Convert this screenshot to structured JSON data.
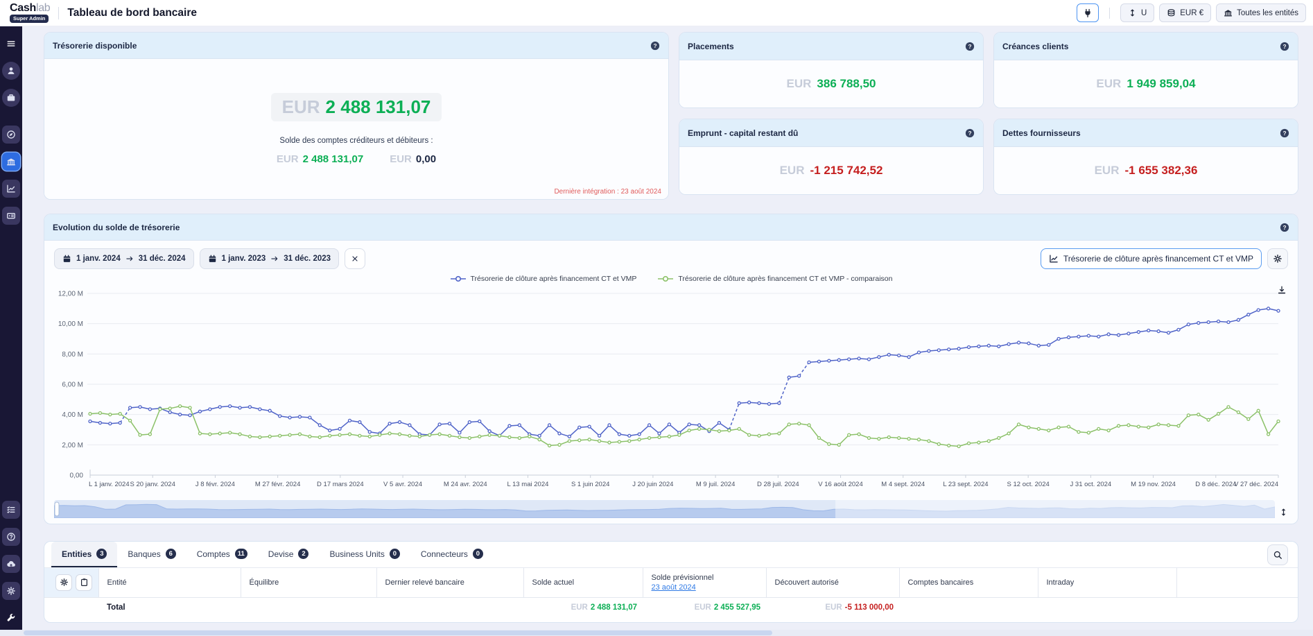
{
  "app": {
    "brand_bold": "Cash",
    "brand_light": "lab",
    "brand_badge": "Super Admin",
    "page_title": "Tableau de bord bancaire"
  },
  "header_actions": {
    "connection": {
      "icon": "plug-icon"
    },
    "unit": {
      "icon": "updown-arrows-icon",
      "label": "U"
    },
    "currency": {
      "icon": "coins-icon",
      "label": "EUR €"
    },
    "entities": {
      "icon": "bank-building-icon",
      "label": "Toutes les entités"
    }
  },
  "sidebar": {
    "top_items": [
      {
        "name": "menu",
        "icon": "menu-icon",
        "style": "plain"
      },
      {
        "name": "profile",
        "icon": "user-icon",
        "style": "circle"
      },
      {
        "name": "workspace",
        "icon": "briefcase-icon",
        "style": "circle"
      },
      {
        "name": "explore",
        "icon": "compass-icon",
        "style": "square",
        "gap_before": true
      },
      {
        "name": "banking-dashboard",
        "icon": "bank-icon",
        "style": "square",
        "active": true
      },
      {
        "name": "analytics",
        "icon": "chart-line-icon",
        "style": "square"
      },
      {
        "name": "payments",
        "icon": "cash-icon",
        "style": "square"
      }
    ],
    "bottom_items": [
      {
        "name": "tasks",
        "icon": "checklist-icon",
        "style": "square"
      },
      {
        "name": "help",
        "icon": "help-icon",
        "style": "square"
      },
      {
        "name": "import",
        "icon": "cloud-upload-icon",
        "style": "square"
      },
      {
        "name": "settings",
        "icon": "gear-icon",
        "style": "square"
      },
      {
        "name": "tools",
        "icon": "wrench-icon",
        "style": "plain"
      }
    ]
  },
  "kpi_main": {
    "title": "Trésorerie disponible",
    "currency": "EUR",
    "value": "2 488 131,07",
    "subtitle": "Solde des comptes créditeurs et débiteurs :",
    "sub_values": [
      {
        "currency": "EUR",
        "value": "2 488 131,07",
        "tone": "positive"
      },
      {
        "currency": "EUR",
        "value": "0,00",
        "tone": "neutral"
      }
    ],
    "footnote": "Dernière intégration : 23 août 2024"
  },
  "kpi_columns": [
    [
      {
        "title": "Placements",
        "currency": "EUR",
        "value": "386 788,50",
        "tone": "positive"
      },
      {
        "title": "Emprunt - capital restant dû",
        "currency": "EUR",
        "value": "-1 215 742,52",
        "tone": "negative"
      }
    ],
    [
      {
        "title": "Créances clients",
        "currency": "EUR",
        "value": "1 949 859,04",
        "tone": "positive"
      },
      {
        "title": "Dettes fournisseurs",
        "currency": "EUR",
        "value": "-1 655 382,36",
        "tone": "negative"
      }
    ]
  ],
  "chart_section": {
    "title": "Evolution du solde de trésorerie",
    "date_filters": [
      {
        "start": "1 janv. 2024",
        "end": "31 déc. 2024"
      },
      {
        "start": "1 janv. 2023",
        "end": "31 déc. 2023"
      }
    ],
    "series_button_label": "Trésorerie de clôture après financement CT et VMP"
  },
  "chart_data": {
    "type": "line",
    "title": "Evolution du solde de trésorerie",
    "unit": "EUR (millions)",
    "ylim_millions": [
      0,
      12
    ],
    "grid": true,
    "legend_position": "top",
    "y_ticks": [
      "0,00",
      "2,00 M",
      "4,00 M",
      "6,00 M",
      "8,00 M",
      "10,00 M",
      "12,00 M"
    ],
    "x_ticks": [
      "L 1 janv. 2024",
      "S 20 janv. 2024",
      "J 8 févr. 2024",
      "M 27 févr. 2024",
      "D 17 mars 2024",
      "V 5 avr. 2024",
      "M 24 avr. 2024",
      "L 13 mai 2024",
      "S 1 juin 2024",
      "J 20 juin 2024",
      "M 9 juil. 2024",
      "D 28 juil. 2024",
      "V 16 août 2024",
      "M 4 sept. 2024",
      "L 23 sept. 2024",
      "S 12 oct. 2024",
      "J 31 oct. 2024",
      "M 19 nov. 2024",
      "D 8 déc. 2024",
      "V 27 déc. 2024"
    ],
    "series": [
      {
        "name": "Trésorerie de clôture après financement CT et VMP",
        "color": "#4f63c8",
        "dashed_jumps": true,
        "values_millions": [
          3.55,
          3.45,
          3.4,
          3.45,
          4.45,
          4.5,
          4.35,
          4.4,
          4.15,
          4.0,
          3.95,
          4.2,
          4.35,
          4.5,
          4.55,
          4.45,
          4.5,
          4.35,
          4.25,
          3.9,
          3.8,
          3.85,
          3.8,
          3.3,
          2.95,
          3.05,
          3.6,
          3.5,
          2.85,
          2.75,
          3.4,
          3.5,
          3.3,
          2.7,
          2.65,
          3.35,
          3.4,
          2.8,
          3.5,
          3.55,
          2.9,
          2.6,
          3.25,
          3.3,
          2.7,
          2.6,
          3.3,
          2.75,
          2.55,
          3.15,
          3.2,
          2.6,
          3.3,
          2.7,
          2.6,
          2.7,
          3.3,
          2.75,
          3.35,
          2.8,
          3.35,
          3.3,
          2.9,
          3.45,
          3.0,
          4.75,
          4.8,
          4.75,
          4.7,
          4.75,
          6.45,
          6.55,
          7.45,
          7.5,
          7.55,
          7.6,
          7.65,
          7.7,
          7.65,
          7.8,
          7.95,
          7.9,
          7.8,
          8.1,
          8.2,
          8.25,
          8.3,
          8.35,
          8.45,
          8.5,
          8.55,
          8.5,
          8.65,
          8.75,
          8.7,
          8.55,
          8.6,
          9.0,
          9.1,
          9.15,
          9.2,
          9.15,
          9.3,
          9.25,
          9.35,
          9.45,
          9.55,
          9.5,
          9.4,
          9.6,
          9.95,
          10.05,
          10.1,
          10.15,
          10.1,
          10.25,
          10.6,
          10.9,
          11.0,
          10.85
        ]
      },
      {
        "name": "Trésorerie de clôture après financement CT et VMP - comparaison",
        "color": "#8bc168",
        "dashed_jumps": false,
        "values_millions": [
          4.05,
          4.1,
          4.0,
          4.05,
          3.6,
          2.65,
          2.7,
          4.35,
          4.4,
          4.55,
          4.45,
          2.75,
          2.7,
          2.75,
          2.8,
          2.7,
          2.55,
          2.5,
          2.55,
          2.6,
          2.65,
          2.7,
          2.55,
          2.5,
          2.6,
          2.65,
          2.7,
          2.6,
          2.55,
          2.65,
          2.75,
          2.7,
          2.6,
          2.55,
          2.65,
          2.7,
          2.6,
          2.5,
          2.45,
          2.55,
          2.65,
          2.6,
          2.5,
          2.45,
          2.55,
          2.35,
          1.95,
          2.0,
          2.25,
          2.3,
          2.35,
          2.25,
          2.15,
          2.2,
          2.25,
          2.35,
          2.45,
          2.5,
          2.55,
          2.65,
          2.95,
          3.05,
          3.0,
          2.9,
          2.95,
          3.05,
          2.65,
          2.6,
          2.7,
          2.75,
          3.35,
          3.4,
          3.3,
          2.45,
          2.05,
          2.0,
          2.65,
          2.7,
          2.45,
          2.4,
          2.5,
          2.45,
          2.4,
          2.35,
          2.25,
          2.05,
          1.95,
          1.9,
          2.1,
          2.15,
          2.25,
          2.45,
          2.75,
          3.35,
          3.15,
          3.05,
          2.95,
          3.15,
          3.2,
          2.85,
          2.8,
          3.05,
          2.95,
          3.25,
          3.3,
          3.2,
          3.15,
          3.35,
          3.3,
          3.25,
          3.95,
          4.0,
          3.65,
          4.05,
          4.5,
          4.15,
          3.7,
          4.25,
          2.7,
          3.55
        ]
      }
    ]
  },
  "tabs": [
    {
      "label": "Entities",
      "count": "3",
      "active": true
    },
    {
      "label": "Banques",
      "count": "6",
      "active": false
    },
    {
      "label": "Comptes",
      "count": "11",
      "active": false
    },
    {
      "label": "Devise",
      "count": "2",
      "active": false
    },
    {
      "label": "Business Units",
      "count": "0",
      "active": false
    },
    {
      "label": "Connecteurs",
      "count": "0",
      "active": false
    }
  ],
  "table": {
    "columns": [
      {
        "key": "entite",
        "label": "Entité"
      },
      {
        "key": "equilibre",
        "label": "Équilibre"
      },
      {
        "key": "dernier_releve",
        "label": "Dernier relevé bancaire"
      },
      {
        "key": "solde_actuel",
        "label": "Solde actuel"
      },
      {
        "key": "solde_previsionnel",
        "label": "Solde prévisionnel",
        "sublink": "23 août 2024"
      },
      {
        "key": "decouvert_autorise",
        "label": "Découvert autorisé"
      },
      {
        "key": "comptes_bancaires",
        "label": "Comptes bancaires"
      },
      {
        "key": "intraday",
        "label": "Intraday"
      }
    ],
    "total": {
      "label": "Total",
      "values": {
        "solde_actuel": {
          "currency": "EUR",
          "amount": "2 488 131,07",
          "tone": "positive"
        },
        "solde_previsionnel": {
          "currency": "EUR",
          "amount": "2 455 527,95",
          "tone": "positive"
        },
        "decouvert_autorise": {
          "currency": "EUR",
          "amount": "-5 113 000,00",
          "tone": "negative"
        }
      }
    }
  },
  "colors": {
    "accent_blue": "#2e6ce0",
    "positive_green": "#0caf55",
    "negative_red": "#c51f1f",
    "series_blue": "#4f63c8",
    "series_green": "#8bc168",
    "card_header_bg": "#e0effb",
    "sidebar_bg": "#191735"
  }
}
